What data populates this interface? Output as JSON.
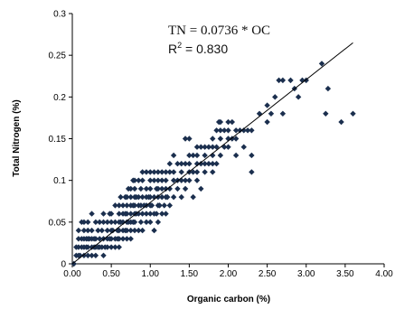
{
  "chart_data": {
    "type": "scatter",
    "title": "",
    "xlabel": "Organic carbon (%)",
    "ylabel": "Total Nitrogen (%)",
    "xlim": [
      0,
      4
    ],
    "ylim": [
      0,
      0.3
    ],
    "grid": false,
    "legend": "none",
    "x_ticks": [
      "0.00",
      "0.50",
      "1.00",
      "1.50",
      "2.00",
      "2.50",
      "3.00",
      "3.50",
      "4.00"
    ],
    "y_ticks": [
      "0",
      "0.05",
      "0.1",
      "0.15",
      "0.2",
      "0.25",
      "0.3"
    ],
    "annotation": {
      "equation": "TN = 0.0736 * OC",
      "r2_prefix": "R",
      "r2_sup": "2",
      "r2_value": " = 0.830"
    },
    "trendline": {
      "slope": 0.0736,
      "intercept": 0,
      "x_range": [
        0,
        3.6
      ]
    },
    "marker_color": "#1b2f4e",
    "points": [
      [
        0.02,
        0.0
      ],
      [
        0.05,
        0.01
      ],
      [
        0.05,
        0.02
      ],
      [
        0.08,
        0.01
      ],
      [
        0.08,
        0.02
      ],
      [
        0.08,
        0.03
      ],
      [
        0.08,
        0.04
      ],
      [
        0.1,
        0.01
      ],
      [
        0.12,
        0.02
      ],
      [
        0.12,
        0.03
      ],
      [
        0.12,
        0.05
      ],
      [
        0.15,
        0.01
      ],
      [
        0.15,
        0.02
      ],
      [
        0.15,
        0.03
      ],
      [
        0.15,
        0.04
      ],
      [
        0.15,
        0.05
      ],
      [
        0.18,
        0.02
      ],
      [
        0.18,
        0.03
      ],
      [
        0.2,
        0.01
      ],
      [
        0.2,
        0.02
      ],
      [
        0.2,
        0.03
      ],
      [
        0.2,
        0.04
      ],
      [
        0.2,
        0.05
      ],
      [
        0.22,
        0.03
      ],
      [
        0.25,
        0.01
      ],
      [
        0.25,
        0.02
      ],
      [
        0.25,
        0.03
      ],
      [
        0.25,
        0.04
      ],
      [
        0.25,
        0.06
      ],
      [
        0.28,
        0.02
      ],
      [
        0.28,
        0.03
      ],
      [
        0.3,
        0.01
      ],
      [
        0.3,
        0.02
      ],
      [
        0.3,
        0.03
      ],
      [
        0.3,
        0.05
      ],
      [
        0.33,
        0.02
      ],
      [
        0.33,
        0.04
      ],
      [
        0.35,
        0.02
      ],
      [
        0.35,
        0.03
      ],
      [
        0.35,
        0.05
      ],
      [
        0.38,
        0.02
      ],
      [
        0.38,
        0.04
      ],
      [
        0.4,
        0.01
      ],
      [
        0.4,
        0.03
      ],
      [
        0.4,
        0.05
      ],
      [
        0.4,
        0.06
      ],
      [
        0.42,
        0.02
      ],
      [
        0.45,
        0.02
      ],
      [
        0.45,
        0.03
      ],
      [
        0.45,
        0.04
      ],
      [
        0.45,
        0.05
      ],
      [
        0.48,
        0.03
      ],
      [
        0.48,
        0.06
      ],
      [
        0.5,
        0.02
      ],
      [
        0.5,
        0.03
      ],
      [
        0.5,
        0.04
      ],
      [
        0.5,
        0.05
      ],
      [
        0.5,
        0.06
      ],
      [
        0.52,
        0.04
      ],
      [
        0.55,
        0.02
      ],
      [
        0.55,
        0.03
      ],
      [
        0.55,
        0.05
      ],
      [
        0.55,
        0.07
      ],
      [
        0.58,
        0.03
      ],
      [
        0.58,
        0.04
      ],
      [
        0.6,
        0.02
      ],
      [
        0.6,
        0.03
      ],
      [
        0.6,
        0.04
      ],
      [
        0.6,
        0.05
      ],
      [
        0.6,
        0.06
      ],
      [
        0.6,
        0.07
      ],
      [
        0.62,
        0.05
      ],
      [
        0.62,
        0.08
      ],
      [
        0.65,
        0.03
      ],
      [
        0.65,
        0.04
      ],
      [
        0.65,
        0.05
      ],
      [
        0.65,
        0.06
      ],
      [
        0.65,
        0.07
      ],
      [
        0.68,
        0.04
      ],
      [
        0.68,
        0.06
      ],
      [
        0.68,
        0.08
      ],
      [
        0.7,
        0.03
      ],
      [
        0.7,
        0.04
      ],
      [
        0.7,
        0.05
      ],
      [
        0.7,
        0.06
      ],
      [
        0.7,
        0.07
      ],
      [
        0.7,
        0.08
      ],
      [
        0.72,
        0.05
      ],
      [
        0.72,
        0.09
      ],
      [
        0.75,
        0.03
      ],
      [
        0.75,
        0.04
      ],
      [
        0.75,
        0.05
      ],
      [
        0.75,
        0.06
      ],
      [
        0.75,
        0.07
      ],
      [
        0.75,
        0.08
      ],
      [
        0.75,
        0.09
      ],
      [
        0.78,
        0.05
      ],
      [
        0.78,
        0.07
      ],
      [
        0.78,
        0.1
      ],
      [
        0.8,
        0.04
      ],
      [
        0.8,
        0.05
      ],
      [
        0.8,
        0.06
      ],
      [
        0.8,
        0.07
      ],
      [
        0.8,
        0.08
      ],
      [
        0.8,
        0.09
      ],
      [
        0.8,
        0.1
      ],
      [
        0.82,
        0.06
      ],
      [
        0.82,
        0.08
      ],
      [
        0.85,
        0.04
      ],
      [
        0.85,
        0.06
      ],
      [
        0.85,
        0.07
      ],
      [
        0.85,
        0.08
      ],
      [
        0.85,
        0.1
      ],
      [
        0.88,
        0.05
      ],
      [
        0.88,
        0.07
      ],
      [
        0.88,
        0.09
      ],
      [
        0.9,
        0.04
      ],
      [
        0.9,
        0.06
      ],
      [
        0.9,
        0.08
      ],
      [
        0.9,
        0.1
      ],
      [
        0.9,
        0.11
      ],
      [
        0.92,
        0.07
      ],
      [
        0.95,
        0.05
      ],
      [
        0.95,
        0.06
      ],
      [
        0.95,
        0.07
      ],
      [
        0.95,
        0.08
      ],
      [
        0.95,
        0.09
      ],
      [
        0.95,
        0.11
      ],
      [
        0.98,
        0.08
      ],
      [
        1.0,
        0.05
      ],
      [
        1.0,
        0.06
      ],
      [
        1.0,
        0.07
      ],
      [
        1.0,
        0.08
      ],
      [
        1.0,
        0.09
      ],
      [
        1.0,
        0.1
      ],
      [
        1.0,
        0.11
      ],
      [
        1.02,
        0.07
      ],
      [
        1.05,
        0.04
      ],
      [
        1.05,
        0.06
      ],
      [
        1.05,
        0.08
      ],
      [
        1.05,
        0.1
      ],
      [
        1.05,
        0.11
      ],
      [
        1.08,
        0.06
      ],
      [
        1.08,
        0.09
      ],
      [
        1.1,
        0.05
      ],
      [
        1.1,
        0.07
      ],
      [
        1.1,
        0.08
      ],
      [
        1.1,
        0.09
      ],
      [
        1.1,
        0.1
      ],
      [
        1.1,
        0.11
      ],
      [
        1.12,
        0.07
      ],
      [
        1.15,
        0.06
      ],
      [
        1.15,
        0.08
      ],
      [
        1.15,
        0.09
      ],
      [
        1.15,
        0.1
      ],
      [
        1.15,
        0.11
      ],
      [
        1.18,
        0.07
      ],
      [
        1.2,
        0.06
      ],
      [
        1.2,
        0.08
      ],
      [
        1.2,
        0.09
      ],
      [
        1.2,
        0.1
      ],
      [
        1.2,
        0.11
      ],
      [
        1.22,
        0.08
      ],
      [
        1.25,
        0.07
      ],
      [
        1.25,
        0.09
      ],
      [
        1.25,
        0.11
      ],
      [
        1.25,
        0.12
      ],
      [
        1.3,
        0.08
      ],
      [
        1.3,
        0.1
      ],
      [
        1.3,
        0.11
      ],
      [
        1.3,
        0.13
      ],
      [
        1.35,
        0.09
      ],
      [
        1.35,
        0.1
      ],
      [
        1.35,
        0.12
      ],
      [
        1.4,
        0.08
      ],
      [
        1.4,
        0.1
      ],
      [
        1.4,
        0.11
      ],
      [
        1.4,
        0.12
      ],
      [
        1.45,
        0.09
      ],
      [
        1.45,
        0.1
      ],
      [
        1.45,
        0.12
      ],
      [
        1.45,
        0.15
      ],
      [
        1.5,
        0.1
      ],
      [
        1.5,
        0.11
      ],
      [
        1.5,
        0.12
      ],
      [
        1.5,
        0.13
      ],
      [
        1.5,
        0.15
      ],
      [
        1.55,
        0.08
      ],
      [
        1.55,
        0.11
      ],
      [
        1.55,
        0.13
      ],
      [
        1.6,
        0.1
      ],
      [
        1.6,
        0.11
      ],
      [
        1.6,
        0.12
      ],
      [
        1.6,
        0.13
      ],
      [
        1.6,
        0.14
      ],
      [
        1.65,
        0.09
      ],
      [
        1.65,
        0.12
      ],
      [
        1.65,
        0.14
      ],
      [
        1.7,
        0.11
      ],
      [
        1.7,
        0.12
      ],
      [
        1.7,
        0.13
      ],
      [
        1.7,
        0.14
      ],
      [
        1.75,
        0.12
      ],
      [
        1.75,
        0.14
      ],
      [
        1.8,
        0.11
      ],
      [
        1.8,
        0.12
      ],
      [
        1.8,
        0.13
      ],
      [
        1.8,
        0.14
      ],
      [
        1.8,
        0.15
      ],
      [
        1.85,
        0.12
      ],
      [
        1.85,
        0.14
      ],
      [
        1.85,
        0.16
      ],
      [
        1.88,
        0.17
      ],
      [
        1.9,
        0.13
      ],
      [
        1.9,
        0.15
      ],
      [
        1.9,
        0.16
      ],
      [
        1.9,
        0.17
      ],
      [
        1.95,
        0.14
      ],
      [
        1.95,
        0.16
      ],
      [
        2.0,
        0.14
      ],
      [
        2.0,
        0.15
      ],
      [
        2.0,
        0.16
      ],
      [
        2.0,
        0.17
      ],
      [
        2.05,
        0.15
      ],
      [
        2.05,
        0.17
      ],
      [
        2.1,
        0.13
      ],
      [
        2.1,
        0.15
      ],
      [
        2.1,
        0.16
      ],
      [
        2.15,
        0.16
      ],
      [
        2.2,
        0.14
      ],
      [
        2.2,
        0.16
      ],
      [
        2.25,
        0.16
      ],
      [
        2.3,
        0.11
      ],
      [
        2.3,
        0.13
      ],
      [
        2.3,
        0.16
      ],
      [
        2.4,
        0.18
      ],
      [
        2.5,
        0.17
      ],
      [
        2.5,
        0.19
      ],
      [
        2.55,
        0.18
      ],
      [
        2.6,
        0.2
      ],
      [
        2.65,
        0.22
      ],
      [
        2.7,
        0.18
      ],
      [
        2.7,
        0.22
      ],
      [
        2.8,
        0.22
      ],
      [
        2.85,
        0.21
      ],
      [
        2.9,
        0.2
      ],
      [
        2.95,
        0.22
      ],
      [
        3.0,
        0.22
      ],
      [
        3.2,
        0.24
      ],
      [
        3.25,
        0.18
      ],
      [
        3.28,
        0.21
      ],
      [
        3.45,
        0.17
      ],
      [
        3.6,
        0.18
      ]
    ]
  }
}
